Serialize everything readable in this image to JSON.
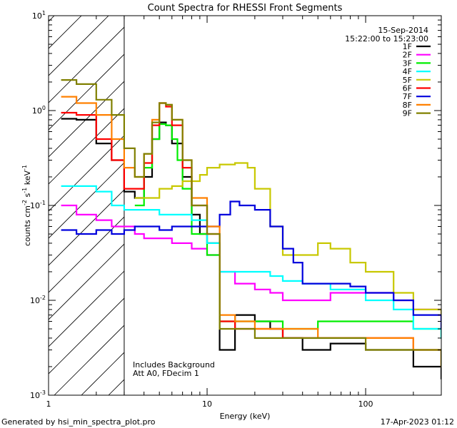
{
  "chart_data": {
    "type": "line",
    "title": "Count Spectra for RHESSI Front Segments",
    "xlabel": "Energy (keV)",
    "ylabel_parts": {
      "a": "counts cm",
      "b": "-2",
      "c": " s",
      "d": "-1",
      "e": " keV",
      "f": "-1"
    },
    "xscale": "log",
    "yscale": "log",
    "xlim": [
      1,
      300
    ],
    "ylim": [
      0.001,
      10
    ],
    "x_ticks": [
      {
        "v": 1,
        "label": "1"
      },
      {
        "v": 10,
        "label": "10"
      },
      {
        "v": 100,
        "label": "100"
      }
    ],
    "y_ticks": [
      {
        "v": 0.001,
        "base": "10",
        "exp": "-3"
      },
      {
        "v": 0.01,
        "base": "10",
        "exp": "-2"
      },
      {
        "v": 0.1,
        "base": "10",
        "exp": "-1"
      },
      {
        "v": 1,
        "base": "10",
        "exp": "0"
      },
      {
        "v": 10,
        "base": "10",
        "exp": "1"
      }
    ],
    "shaded_region": {
      "x": [
        1,
        3
      ]
    },
    "legend_position": "top-right",
    "date": "15-Sep-2014",
    "time_range": "15:22:00 to 15:23:00",
    "annotations": [
      "Includes Background",
      "Att A0, FDecim 1"
    ],
    "series": [
      {
        "name": "1F",
        "color": "#000000",
        "x": [
          1.2,
          1.5,
          2.0,
          2.5,
          3.0,
          3.5,
          4.0,
          4.5,
          5.0,
          5.5,
          6.0,
          7.0,
          8.0,
          9.0,
          10.0,
          12.0,
          15.0,
          20.0,
          25.0,
          30.0,
          40.0,
          60.0,
          100.0,
          150.0,
          200.0,
          300.0
        ],
        "y": [
          0.82,
          0.8,
          0.45,
          0.3,
          0.14,
          0.12,
          0.2,
          0.5,
          0.75,
          0.7,
          0.45,
          0.2,
          0.08,
          0.05,
          0.04,
          0.003,
          0.007,
          0.006,
          0.005,
          0.004,
          0.003,
          0.0035,
          0.003,
          0.003,
          0.002,
          0.0015
        ]
      },
      {
        "name": "2F",
        "color": "#ff00ff",
        "x": [
          1.2,
          1.5,
          2.0,
          2.5,
          3.0,
          3.5,
          4.0,
          4.5,
          5.0,
          6.0,
          7.0,
          8.0,
          10.0,
          12.0,
          15.0,
          20.0,
          25.0,
          30.0,
          40.0,
          60.0,
          100.0,
          150.0,
          200.0,
          300.0
        ],
        "y": [
          0.1,
          0.08,
          0.07,
          0.06,
          0.06,
          0.05,
          0.045,
          0.045,
          0.045,
          0.04,
          0.04,
          0.035,
          0.03,
          0.02,
          0.015,
          0.013,
          0.012,
          0.01,
          0.01,
          0.012,
          0.012,
          0.01,
          0.008,
          0.006
        ]
      },
      {
        "name": "3F",
        "color": "#00ee00",
        "x": [
          3.5,
          4.0,
          4.5,
          5.0,
          5.5,
          6.0,
          6.5,
          7.0,
          8.0,
          10.0,
          12.0,
          15.0,
          20.0,
          30.0,
          50.0,
          100.0,
          200.0,
          300.0
        ],
        "y": [
          0.1,
          0.25,
          0.5,
          0.72,
          0.7,
          0.5,
          0.3,
          0.15,
          0.05,
          0.03,
          0.006,
          0.006,
          0.006,
          0.005,
          0.006,
          0.006,
          0.005,
          0.004
        ]
      },
      {
        "name": "4F",
        "color": "#00ffff",
        "x": [
          1.2,
          1.5,
          2.0,
          2.5,
          3.0,
          4.0,
          5.0,
          6.0,
          8.0,
          10.0,
          12.0,
          15.0,
          20.0,
          25.0,
          30.0,
          40.0,
          60.0,
          100.0,
          150.0,
          200.0,
          300.0
        ],
        "y": [
          0.16,
          0.16,
          0.14,
          0.1,
          0.09,
          0.09,
          0.08,
          0.08,
          0.07,
          0.04,
          0.02,
          0.02,
          0.02,
          0.018,
          0.016,
          0.015,
          0.013,
          0.01,
          0.008,
          0.005,
          0.004
        ]
      },
      {
        "name": "5F",
        "color": "#c8c800",
        "x": [
          3.5,
          4.0,
          5.0,
          6.0,
          7.0,
          8.0,
          9.0,
          10.0,
          12.0,
          15.0,
          18.0,
          20.0,
          25.0,
          30.0,
          35.0,
          40.0,
          50.0,
          60.0,
          80.0,
          100.0,
          150.0,
          200.0,
          300.0
        ],
        "y": [
          0.12,
          0.12,
          0.15,
          0.16,
          0.18,
          0.18,
          0.21,
          0.25,
          0.27,
          0.28,
          0.25,
          0.15,
          0.06,
          0.03,
          0.03,
          0.03,
          0.04,
          0.035,
          0.025,
          0.02,
          0.012,
          0.008,
          0.005
        ]
      },
      {
        "name": "6F",
        "color": "#ff0000",
        "x": [
          1.2,
          1.5,
          2.0,
          2.5,
          3.0,
          3.5,
          4.0,
          4.5,
          5.0,
          5.5,
          6.0,
          7.0,
          8.0,
          10.0,
          12.0,
          15.0,
          20.0,
          30.0,
          50.0,
          100.0,
          200.0,
          300.0
        ],
        "y": [
          0.95,
          0.9,
          0.5,
          0.3,
          0.15,
          0.15,
          0.28,
          0.7,
          1.2,
          1.1,
          0.7,
          0.25,
          0.1,
          0.05,
          0.006,
          0.005,
          0.005,
          0.004,
          0.004,
          0.004,
          0.003,
          0.002
        ]
      },
      {
        "name": "7F",
        "color": "#0000dd",
        "x": [
          1.2,
          1.5,
          2.0,
          2.5,
          3.0,
          3.5,
          4.0,
          5.0,
          6.0,
          8.0,
          10.0,
          12.0,
          14.0,
          16.0,
          20.0,
          25.0,
          30.0,
          35.0,
          40.0,
          50.0,
          60.0,
          80.0,
          100.0,
          150.0,
          200.0,
          300.0
        ],
        "y": [
          0.055,
          0.05,
          0.055,
          0.05,
          0.055,
          0.06,
          0.06,
          0.055,
          0.06,
          0.06,
          0.06,
          0.08,
          0.11,
          0.1,
          0.09,
          0.06,
          0.035,
          0.025,
          0.015,
          0.015,
          0.015,
          0.014,
          0.012,
          0.01,
          0.007,
          0.005
        ]
      },
      {
        "name": "8F",
        "color": "#ff8000",
        "x": [
          1.2,
          1.5,
          2.0,
          2.5,
          3.0,
          3.5,
          4.0,
          4.5,
          5.0,
          5.5,
          6.0,
          7.0,
          8.0,
          10.0,
          12.0,
          15.0,
          20.0,
          30.0,
          50.0,
          100.0,
          200.0,
          300.0
        ],
        "y": [
          1.4,
          1.2,
          0.9,
          0.5,
          0.25,
          0.2,
          0.35,
          0.8,
          1.2,
          1.15,
          0.8,
          0.3,
          0.12,
          0.06,
          0.007,
          0.006,
          0.005,
          0.005,
          0.004,
          0.004,
          0.003,
          0.002
        ]
      },
      {
        "name": "9F",
        "color": "#808000",
        "x": [
          1.2,
          1.5,
          2.0,
          2.5,
          3.0,
          3.5,
          4.0,
          4.5,
          5.0,
          5.5,
          6.0,
          7.0,
          8.0,
          10.0,
          12.0,
          15.0,
          20.0,
          30.0,
          50.0,
          100.0,
          200.0,
          300.0
        ],
        "y": [
          2.1,
          1.9,
          1.3,
          0.9,
          0.4,
          0.2,
          0.35,
          0.75,
          1.2,
          1.15,
          0.8,
          0.3,
          0.1,
          0.05,
          0.005,
          0.005,
          0.004,
          0.004,
          0.004,
          0.003,
          0.003,
          0.002
        ]
      }
    ]
  },
  "footer": {
    "left": "Generated by hsi_min_spectra_plot.pro",
    "right": "17-Apr-2023 01:12"
  }
}
